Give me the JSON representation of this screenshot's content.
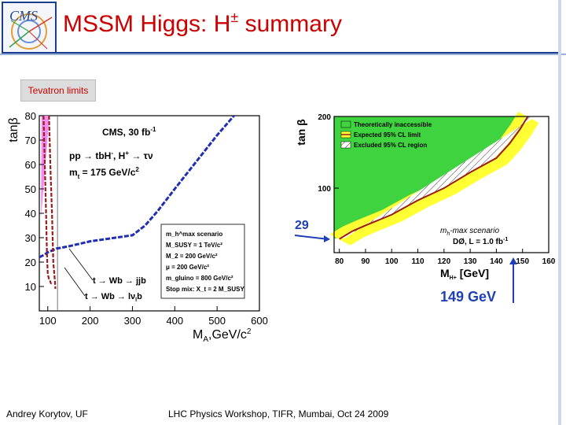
{
  "slide": {
    "logo_text": "CMS",
    "title_main": "MSSM Higgs: H",
    "title_sup": "±",
    "title_end": " summary",
    "tag": "Tevatron limits",
    "footer_left": "Andrey Korytov, UF",
    "footer_center": "LHC Physics Workshop, TIFR, Mumbai, Oct 24 2009"
  },
  "colors": {
    "title": "#cc0000",
    "magenta_region": "#f38cf0",
    "green_region": "#3fd43f",
    "yellow_band": "#ffff33",
    "limit_line": "#9b1c1c",
    "blue_curve": "#1f2fb0",
    "arrow_blue": "#1f3fb5"
  },
  "chart_data": [
    {
      "type": "line",
      "xlabel": "M",
      "xlabel_sub": "A",
      "xlabel_rest": ",GeV/c",
      "xlabel_sup": "2",
      "ylabel": "tanβ",
      "xlim": [
        80,
        600
      ],
      "ylim": [
        0,
        80
      ],
      "x_ticks": [
        100,
        200,
        300,
        400,
        500,
        600
      ],
      "y_ticks": [
        10,
        20,
        30,
        40,
        50,
        60,
        70,
        80
      ],
      "annotations": {
        "lumi": "CMS, 30 fb",
        "lumi_sup": "-1",
        "process": "pp → tbH",
        "process_sup": "-",
        "process_rest": ", H",
        "process_sup2": "+",
        "process_end": " → τν",
        "mass": "m",
        "mass_sub": "t",
        "mass_rest": " = 175 GeV/c",
        "mass_sup": "2",
        "decay1": "t → Wb → jjb",
        "decay2": "t → Wb → lν",
        "decay2_sub": "l",
        "decay2_end": "b"
      },
      "scenario_box": [
        "m_h^max scenario",
        "M_SUSY = 1 TeV/c²",
        "M_2 = 200 GeV/c²",
        "μ = 200 GeV/c²",
        "m_gluino = 800 GeV/c²",
        "Stop mix: X_t = 2 M_SUSY"
      ],
      "series": [
        {
          "x": [
            80,
            92,
            100,
            120,
            150,
            200,
            260,
            300,
            330,
            360,
            400,
            450,
            500,
            540
          ],
          "y": [
            22,
            23,
            24,
            25.5,
            26.5,
            28.5,
            30,
            31,
            35,
            41,
            50,
            61,
            72,
            80
          ]
        },
        {
          "x": [
            90,
            93,
            96,
            98,
            100,
            103,
            106,
            108
          ],
          "y": [
            80,
            60,
            40,
            24,
            15,
            13,
            12,
            11
          ]
        },
        {
          "x": [
            103,
            106,
            110,
            113,
            117,
            118
          ],
          "y": [
            80,
            60,
            40,
            20,
            12,
            9
          ]
        }
      ],
      "magenta_region": {
        "x": [
          85,
          104,
          84
        ],
        "y": [
          80,
          80,
          38
        ]
      }
    },
    {
      "type": "area",
      "xlabel": "M",
      "xlabel_sub": "H+",
      "xlabel_rest": " [GeV]",
      "ylabel": "tan β",
      "xlim": [
        78,
        160
      ],
      "ylim": [
        10,
        200
      ],
      "x_ticks": [
        80,
        90,
        100,
        110,
        120,
        130,
        140,
        150,
        160
      ],
      "y_ticks": [
        100,
        200
      ],
      "legend": [
        "Theoretically inaccessible",
        "Expected 95% CL limit",
        "Excluded 95% CL region"
      ],
      "legend_position": "top-left",
      "annotations": {
        "scenario": "m",
        "scenario_sub": "h",
        "scenario_rest": "-max scenario",
        "experiment": "DØ, L = 1.0 fb",
        "experiment_sup": "-1",
        "arrow_label_1": "29",
        "arrow_label_2": "149 GeV"
      },
      "series": [
        {
          "x": [
            80,
            85,
            90,
            100,
            110,
            120,
            130,
            140,
            145,
            149,
            152
          ],
          "y": [
            29,
            40,
            48,
            63,
            83,
            100,
            122,
            142,
            162,
            182,
            200
          ]
        }
      ]
    }
  ]
}
